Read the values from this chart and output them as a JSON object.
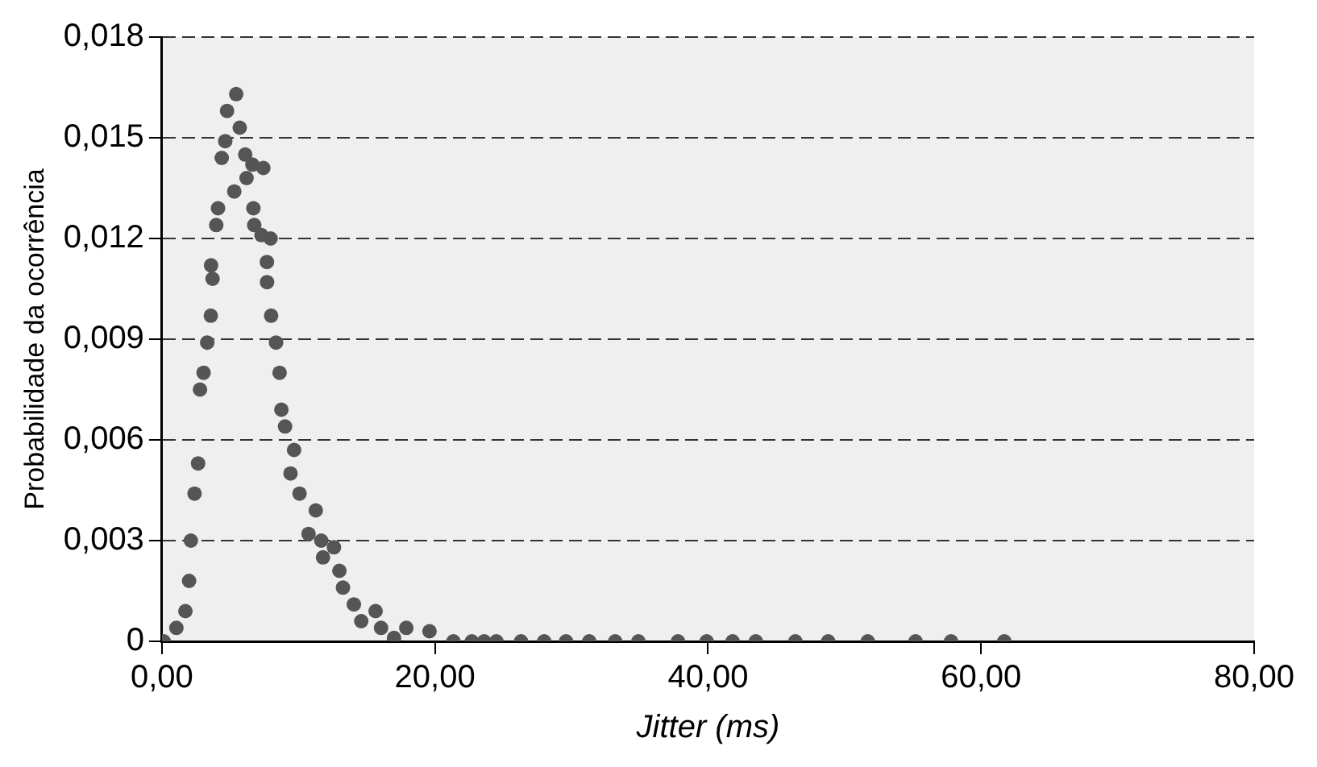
{
  "chart_data": {
    "type": "scatter",
    "xlabel": "Jitter (ms)",
    "ylabel": "Probabilidade da ocorrência",
    "marker": "circle",
    "grid": "y",
    "legend": false,
    "xlim": [
      0,
      80
    ],
    "xticks": [
      {
        "value": 0,
        "label": "0,00"
      },
      {
        "value": 20,
        "label": "20,00"
      },
      {
        "value": 40,
        "label": "40,00"
      },
      {
        "value": 60,
        "label": "60,00"
      },
      {
        "value": 80,
        "label": "80,00"
      }
    ],
    "ylim": [
      0,
      0.018
    ],
    "yticks": [
      {
        "value": 0,
        "label": "0"
      },
      {
        "value": 0.003,
        "label": "0,003"
      },
      {
        "value": 0.006,
        "label": "0,006"
      },
      {
        "value": 0.009,
        "label": "0,009"
      },
      {
        "value": 0.012,
        "label": "0,012"
      },
      {
        "value": 0.015,
        "label": "0,015"
      },
      {
        "value": 0.018,
        "label": "0,018"
      }
    ],
    "series": [
      {
        "color": "#555555",
        "x": [
          0.13,
          1.06,
          1.72,
          1.99,
          2.12,
          2.39,
          2.65,
          2.79,
          3.05,
          3.32,
          3.58,
          3.71,
          3.6,
          3.98,
          4.11,
          4.38,
          4.64,
          4.77,
          5.44,
          5.7,
          6.1,
          6.63,
          7.43,
          6.2,
          5.3,
          6.7,
          6.76,
          7.29,
          7.96,
          7.69,
          7.7,
          8.0,
          8.36,
          8.62,
          8.75,
          9.02,
          9.68,
          9.42,
          10.08,
          11.27,
          10.74,
          11.67,
          12.6,
          11.8,
          13.0,
          13.26,
          14.06,
          15.65,
          14.6,
          16.05,
          17.9,
          19.6,
          17.0,
          21.35,
          22.7,
          23.6,
          24.5,
          26.3,
          28.0,
          29.6,
          31.3,
          33.2,
          34.9,
          37.8,
          39.9,
          41.8,
          43.5,
          46.4,
          48.8,
          51.7,
          55.2,
          57.8,
          61.7
        ],
        "values": [
          0,
          0.0004,
          0.0009,
          0.0018,
          0.003,
          0.0044,
          0.0053,
          0.0075,
          0.008,
          0.0089,
          0.0097,
          0.0108,
          0.0112,
          0.0124,
          0.0129,
          0.0144,
          0.0149,
          0.0158,
          0.0163,
          0.0153,
          0.0145,
          0.0142,
          0.0141,
          0.0138,
          0.0134,
          0.0129,
          0.0124,
          0.0121,
          0.012,
          0.0113,
          0.0107,
          0.0097,
          0.0089,
          0.008,
          0.0069,
          0.0064,
          0.0057,
          0.005,
          0.0044,
          0.0039,
          0.0032,
          0.003,
          0.0028,
          0.0025,
          0.0021,
          0.0016,
          0.0011,
          0.0009,
          0.0006,
          0.0004,
          0.0004,
          0.0003,
          0.0001,
          0,
          0,
          0,
          0,
          0,
          0,
          0,
          0,
          0,
          0,
          0,
          0,
          0,
          0,
          0,
          0,
          0,
          0,
          0,
          0
        ]
      }
    ]
  }
}
